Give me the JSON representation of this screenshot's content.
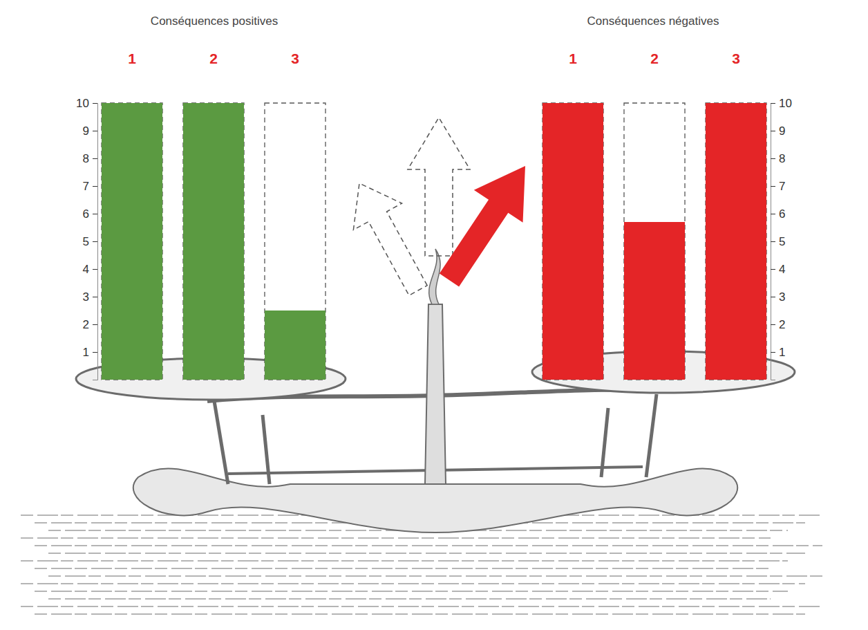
{
  "chart_data": [
    {
      "type": "bar",
      "title": "Conséquences positives",
      "categories": [
        "1",
        "2",
        "3"
      ],
      "values": [
        10,
        10,
        2.5
      ],
      "color": "#5b9a41",
      "ylim": [
        0,
        10
      ],
      "yticks": [
        1,
        2,
        3,
        4,
        5,
        6,
        7,
        8,
        9,
        10
      ]
    },
    {
      "type": "bar",
      "title": "Conséquences négatives",
      "categories": [
        "1",
        "2",
        "3"
      ],
      "values": [
        10,
        5.7,
        10
      ],
      "color": "#e42527",
      "ylim": [
        0,
        10
      ],
      "yticks": [
        1,
        2,
        3,
        4,
        5,
        6,
        7,
        8,
        9,
        10
      ]
    }
  ]
}
